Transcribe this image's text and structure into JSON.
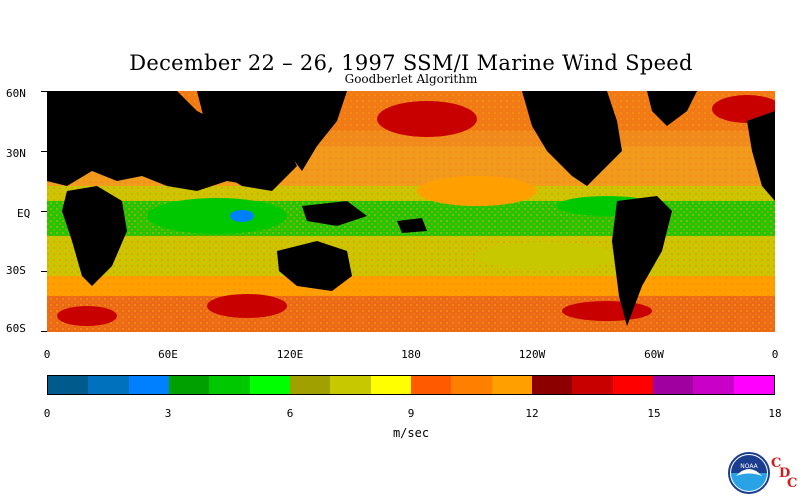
{
  "title": "December 22 – 26, 1997 SSM/I Marine Wind Speed",
  "subtitle": "Goodberlet Algorithm",
  "map": {
    "lat_labels": [
      "60N",
      "30N",
      "EQ",
      "30S",
      "60S"
    ],
    "lon_labels": [
      "0",
      "60E",
      "120E",
      "180",
      "120W",
      "60W",
      "0"
    ]
  },
  "colorbar": {
    "colors": [
      "#005a8c",
      "#0071bd",
      "#0080ff",
      "#00a000",
      "#00c800",
      "#00ff00",
      "#a0a000",
      "#c8c800",
      "#ffff00",
      "#ff5a00",
      "#ff8000",
      "#ffa000",
      "#8c0000",
      "#c80000",
      "#ff0000",
      "#a000a0",
      "#c800c8",
      "#ff00ff"
    ],
    "tick_labels": [
      "0",
      "3",
      "6",
      "9",
      "12",
      "15",
      "18"
    ],
    "units": "m/sec"
  },
  "logo": {
    "noaa_text": "NOAA",
    "cdc_letters": [
      "C",
      "D",
      "C"
    ]
  }
}
